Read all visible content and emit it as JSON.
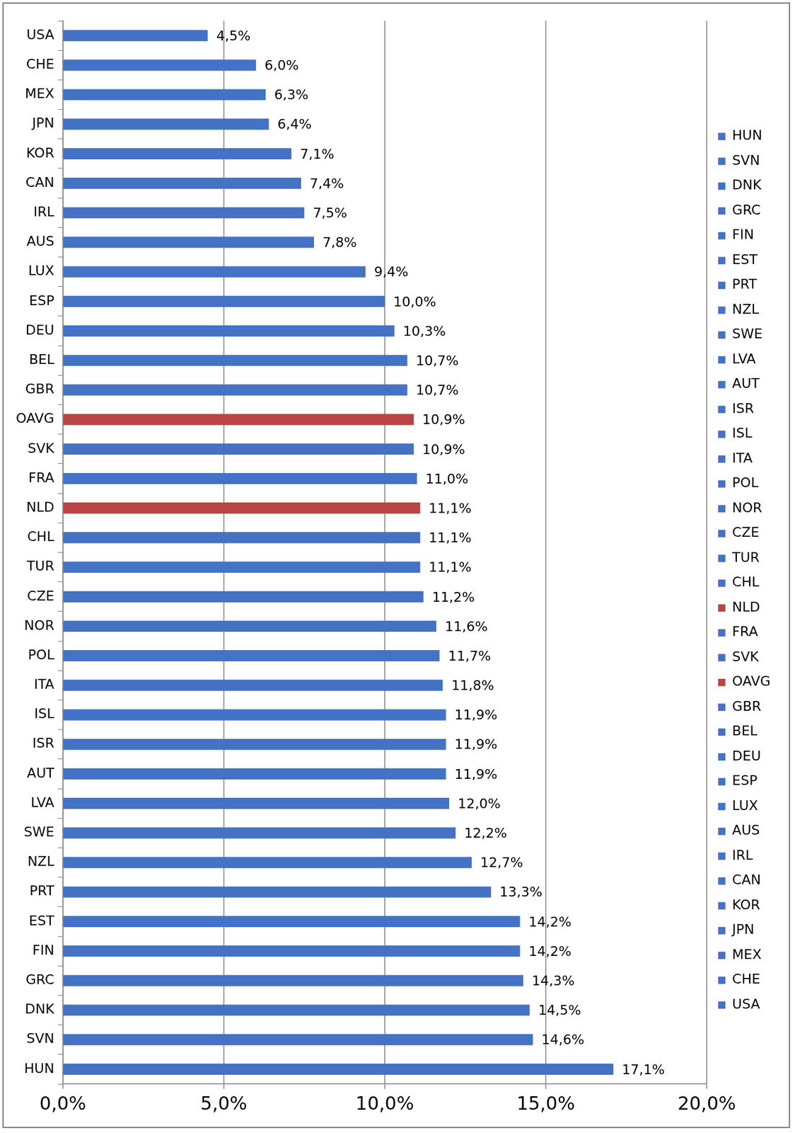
{
  "chart_data": {
    "type": "bar",
    "orientation": "horizontal",
    "categories": [
      "USA",
      "CHE",
      "MEX",
      "JPN",
      "KOR",
      "CAN",
      "IRL",
      "AUS",
      "LUX",
      "ESP",
      "DEU",
      "BEL",
      "GBR",
      "OAVG",
      "SVK",
      "FRA",
      "NLD",
      "CHL",
      "TUR",
      "CZE",
      "NOR",
      "POL",
      "ITA",
      "ISL",
      "ISR",
      "AUT",
      "LVA",
      "SWE",
      "NZL",
      "PRT",
      "EST",
      "FIN",
      "GRC",
      "DNK",
      "SVN",
      "HUN"
    ],
    "values": [
      4.5,
      6.0,
      6.3,
      6.4,
      7.1,
      7.4,
      7.5,
      7.8,
      9.4,
      10.0,
      10.3,
      10.7,
      10.7,
      10.9,
      10.9,
      11.0,
      11.1,
      11.1,
      11.1,
      11.2,
      11.6,
      11.7,
      11.8,
      11.9,
      11.9,
      11.9,
      12.0,
      12.2,
      12.7,
      13.3,
      14.2,
      14.2,
      14.3,
      14.5,
      14.6,
      17.1
    ],
    "value_labels": [
      "4,5%",
      "6,0%",
      "6,3%",
      "6,4%",
      "7,1%",
      "7,4%",
      "7,5%",
      "7,8%",
      "9,4%",
      "10,0%",
      "10,3%",
      "10,7%",
      "10,7%",
      "10,9%",
      "10,9%",
      "11,0%",
      "11,1%",
      "11,1%",
      "11,1%",
      "11,2%",
      "11,6%",
      "11,7%",
      "11,8%",
      "11,9%",
      "11,9%",
      "11,9%",
      "12,0%",
      "12,2%",
      "12,7%",
      "13,3%",
      "14,2%",
      "14,2%",
      "14,3%",
      "14,5%",
      "14,6%",
      "17,1%"
    ],
    "colors": [
      "#4472c4",
      "#4472c4",
      "#4472c4",
      "#4472c4",
      "#4472c4",
      "#4472c4",
      "#4472c4",
      "#4472c4",
      "#4472c4",
      "#4472c4",
      "#4472c4",
      "#4472c4",
      "#4472c4",
      "#b94444",
      "#4472c4",
      "#4472c4",
      "#b94444",
      "#4472c4",
      "#4472c4",
      "#4472c4",
      "#4472c4",
      "#4472c4",
      "#4472c4",
      "#4472c4",
      "#4472c4",
      "#4472c4",
      "#4472c4",
      "#4472c4",
      "#4472c4",
      "#4472c4",
      "#4472c4",
      "#4472c4",
      "#4472c4",
      "#4472c4",
      "#4472c4",
      "#4472c4"
    ],
    "xlim": [
      0,
      20
    ],
    "xticks": [
      {
        "value": 0,
        "label": "0,0%"
      },
      {
        "value": 5,
        "label": "5,0%"
      },
      {
        "value": 10,
        "label": "10,0%"
      },
      {
        "value": 15,
        "label": "15,0%"
      },
      {
        "value": 20,
        "label": "20,0%"
      }
    ],
    "grid": true,
    "data_labels": true,
    "legend": "right"
  }
}
